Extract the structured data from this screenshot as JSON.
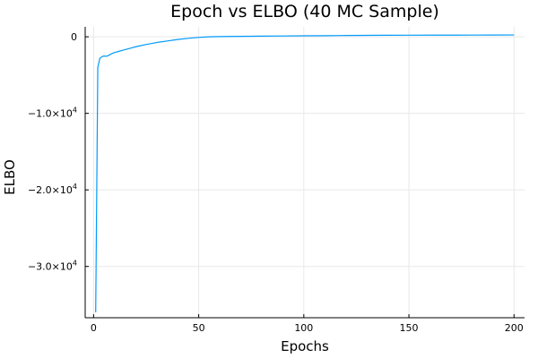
{
  "chart_data": {
    "type": "line",
    "title": "Epoch vs ELBO (40 MC Sample)",
    "xlabel": "Epochs",
    "ylabel": "ELBO",
    "xlim": [
      -4,
      205
    ],
    "ylim": [
      -36700,
      1300
    ],
    "grid": true,
    "legend": "none",
    "x_ticks": [
      {
        "value": 0,
        "label": "0"
      },
      {
        "value": 50,
        "label": "50"
      },
      {
        "value": 100,
        "label": "100"
      },
      {
        "value": 150,
        "label": "150"
      },
      {
        "value": 200,
        "label": "200"
      }
    ],
    "y_ticks": [
      {
        "value": 0,
        "label": "0",
        "sup": ""
      },
      {
        "value": -10000,
        "label": "−1.0×10",
        "sup": "4"
      },
      {
        "value": -20000,
        "label": "−2.0×10",
        "sup": "4"
      },
      {
        "value": -30000,
        "label": "−3.0×10",
        "sup": "4"
      }
    ],
    "series": [
      {
        "color": "#009AFA",
        "x": [
          1,
          2,
          3,
          4,
          5,
          6,
          7,
          8,
          9,
          10,
          12,
          14,
          16,
          18,
          20,
          25,
          30,
          35,
          40,
          45,
          50,
          55,
          60,
          70,
          80,
          90,
          100,
          110,
          120,
          130,
          140,
          150,
          160,
          170,
          180,
          190,
          200
        ],
        "y": [
          -36000,
          -4000,
          -2800,
          -2600,
          -2500,
          -2550,
          -2450,
          -2300,
          -2150,
          -2050,
          -1900,
          -1750,
          -1600,
          -1450,
          -1300,
          -1000,
          -750,
          -550,
          -350,
          -200,
          -80,
          0,
          30,
          60,
          90,
          110,
          130,
          150,
          170,
          190,
          200,
          210,
          215,
          220,
          225,
          230,
          240
        ]
      }
    ]
  }
}
